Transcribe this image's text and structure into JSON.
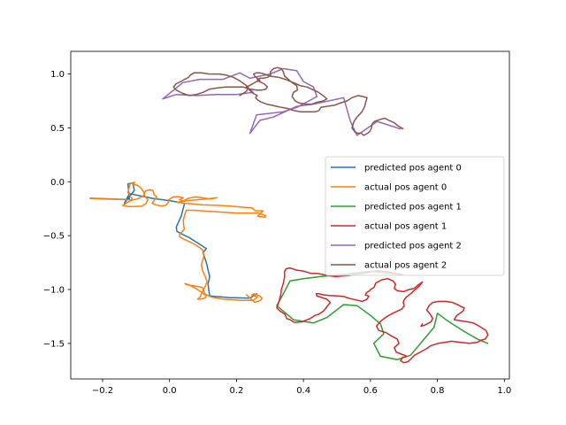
{
  "chart_data": {
    "type": "line",
    "title": "",
    "xlabel": "",
    "ylabel": "",
    "xlim": [
      -0.295,
      1.015
    ],
    "ylim": [
      -1.83,
      1.21
    ],
    "grid": false,
    "legend_position": "center right",
    "x_ticks": [
      -0.2,
      0.0,
      0.2,
      0.4,
      0.6,
      0.8,
      1.0
    ],
    "x_tick_labels": [
      "−0.2",
      "0.0",
      "0.2",
      "0.4",
      "0.6",
      "0.8",
      "1.0"
    ],
    "y_ticks": [
      1.0,
      0.5,
      0.0,
      -0.5,
      -1.0,
      -1.5
    ],
    "y_tick_labels": [
      "1.0",
      "0.5",
      "0.0",
      "−0.5",
      "−1.0",
      "−1.5"
    ],
    "series": [
      {
        "name": "predicted pos agent 0",
        "color": "#1f77b4",
        "x": [
          -0.237,
          -0.12,
          -0.124,
          -0.11,
          -0.105,
          -0.135,
          -0.12,
          -0.05,
          0.0,
          0.045,
          0.035,
          0.02,
          0.022,
          0.04,
          0.06,
          0.09,
          0.11,
          0.1,
          0.11,
          0.12,
          0.115,
          0.12,
          0.18,
          0.24,
          0.26
        ],
        "y": [
          -0.153,
          -0.165,
          -0.02,
          -0.01,
          -0.08,
          -0.2,
          -0.11,
          -0.155,
          -0.175,
          -0.2,
          -0.32,
          -0.42,
          -0.46,
          -0.49,
          -0.52,
          -0.58,
          -0.62,
          -0.66,
          -0.75,
          -0.88,
          -0.95,
          -1.06,
          -1.075,
          -1.08,
          -1.04
        ]
      },
      {
        "name": "actual pos agent 0",
        "color": "#ff7f0e",
        "x": [
          -0.237,
          -0.2,
          -0.16,
          -0.12,
          -0.11,
          -0.124,
          -0.118,
          -0.11,
          -0.104,
          -0.108,
          -0.098,
          -0.088,
          -0.082,
          -0.078,
          -0.075,
          -0.083,
          -0.096,
          -0.112,
          -0.125,
          -0.13,
          -0.14,
          -0.122,
          -0.1,
          -0.082,
          -0.07,
          -0.065,
          -0.071,
          -0.076,
          -0.072,
          -0.06,
          -0.05,
          -0.046,
          -0.038,
          -0.045,
          -0.052,
          -0.04,
          -0.025,
          -0.012,
          -0.005,
          -0.002,
          0.012,
          0.032,
          0.041,
          0.03,
          0.04,
          0.055,
          0.077,
          0.1,
          0.124,
          0.142,
          0.11,
          0.052,
          0.022,
          0.05,
          0.1,
          0.15,
          0.18,
          0.215,
          0.246,
          0.257,
          0.28,
          0.263,
          0.285,
          0.287,
          0.265,
          0.2,
          0.142,
          0.098,
          0.07,
          0.05,
          0.045,
          0.041,
          0.042,
          0.044,
          0.036,
          0.032,
          0.03,
          0.03,
          0.041,
          0.062,
          0.08,
          0.098,
          0.103,
          0.099,
          0.095,
          0.098,
          0.107,
          0.112,
          0.105,
          0.097,
          0.091,
          0.086,
          0.084,
          0.092,
          0.1,
          0.107,
          0.109,
          0.097,
          0.084,
          0.057,
          0.046,
          0.051,
          0.071,
          0.098,
          0.105,
          0.124,
          0.16,
          0.19,
          0.215,
          0.25,
          0.263,
          0.245,
          0.252,
          0.27,
          0.276,
          0.272,
          0.255,
          0.23
        ],
        "y": [
          -0.153,
          -0.16,
          -0.163,
          -0.168,
          -0.165,
          -0.1,
          -0.02,
          -0.01,
          -0.005,
          -0.028,
          -0.03,
          -0.05,
          -0.07,
          -0.09,
          -0.12,
          -0.14,
          -0.16,
          -0.17,
          -0.19,
          -0.2,
          -0.22,
          -0.23,
          -0.23,
          -0.225,
          -0.2,
          -0.165,
          -0.145,
          -0.12,
          -0.085,
          -0.075,
          -0.08,
          -0.12,
          -0.14,
          -0.17,
          -0.2,
          -0.215,
          -0.225,
          -0.22,
          -0.2,
          -0.165,
          -0.14,
          -0.14,
          -0.15,
          -0.165,
          -0.18,
          -0.155,
          -0.14,
          -0.15,
          -0.16,
          -0.148,
          -0.16,
          -0.175,
          -0.19,
          -0.2,
          -0.215,
          -0.22,
          -0.225,
          -0.235,
          -0.243,
          -0.27,
          -0.27,
          -0.32,
          -0.33,
          -0.315,
          -0.29,
          -0.29,
          -0.28,
          -0.27,
          -0.265,
          -0.265,
          -0.31,
          -0.36,
          -0.4,
          -0.44,
          -0.47,
          -0.48,
          -0.495,
          -0.51,
          -0.53,
          -0.56,
          -0.59,
          -0.63,
          -0.68,
          -0.73,
          -0.77,
          -0.82,
          -0.88,
          -0.93,
          -0.98,
          -1.03,
          -1.07,
          -1.085,
          -1.09,
          -1.09,
          -1.085,
          -1.075,
          -1.055,
          -1.03,
          -1.0,
          -0.955,
          -0.945,
          -0.955,
          -0.965,
          -0.98,
          -1.04,
          -1.07,
          -1.09,
          -1.095,
          -1.1,
          -1.1,
          -1.07,
          -1.05,
          -1.04,
          -1.06,
          -1.08,
          -1.1,
          -1.12,
          -1.05
        ],
        "style": "solid"
      },
      {
        "name": "predicted pos agent 1",
        "color": "#2ca02c",
        "x": [
          0.69,
          0.6,
          0.52,
          0.45,
          0.4,
          0.36,
          0.34,
          0.32,
          0.37,
          0.43,
          0.47,
          0.52,
          0.56,
          0.6,
          0.63,
          0.64,
          0.61,
          0.63,
          0.68,
          0.72,
          0.76,
          0.79,
          0.8,
          0.83,
          0.88,
          0.92,
          0.95
        ],
        "y": [
          -0.86,
          -0.83,
          -0.86,
          -0.88,
          -0.9,
          -0.92,
          -1.04,
          -1.15,
          -1.28,
          -1.31,
          -1.26,
          -1.14,
          -1.15,
          -1.24,
          -1.32,
          -1.41,
          -1.5,
          -1.62,
          -1.65,
          -1.61,
          -1.46,
          -1.35,
          -1.22,
          -1.29,
          -1.39,
          -1.46,
          -1.5
        ]
      },
      {
        "name": "actual pos agent 1",
        "color": "#d62728",
        "x": [
          0.695,
          0.68,
          0.66,
          0.64,
          0.62,
          0.6,
          0.58,
          0.555,
          0.535,
          0.515,
          0.495,
          0.475,
          0.456,
          0.44,
          0.422,
          0.401,
          0.38,
          0.368,
          0.358,
          0.347,
          0.343,
          0.344,
          0.34,
          0.334,
          0.332,
          0.327,
          0.32,
          0.33,
          0.345,
          0.35,
          0.36,
          0.37,
          0.374,
          0.395,
          0.42,
          0.434,
          0.445,
          0.46,
          0.47,
          0.48,
          0.47,
          0.46,
          0.45,
          0.44,
          0.438,
          0.446,
          0.462,
          0.478,
          0.503,
          0.52,
          0.54,
          0.562,
          0.575,
          0.59,
          0.595,
          0.585,
          0.588,
          0.598,
          0.6,
          0.611,
          0.616,
          0.634,
          0.652,
          0.667,
          0.675,
          0.671,
          0.68,
          0.698,
          0.715,
          0.73,
          0.742,
          0.755,
          0.745,
          0.73,
          0.72,
          0.707,
          0.7,
          0.698,
          0.701,
          0.694,
          0.681,
          0.667,
          0.655,
          0.645,
          0.632,
          0.618,
          0.625,
          0.647,
          0.662,
          0.68,
          0.685,
          0.671,
          0.677,
          0.692,
          0.702,
          0.708,
          0.696,
          0.69,
          0.7,
          0.712,
          0.722,
          0.732,
          0.749,
          0.767,
          0.781,
          0.802,
          0.823,
          0.842,
          0.869,
          0.895,
          0.919,
          0.931,
          0.943,
          0.951,
          0.945,
          0.925,
          0.907,
          0.89,
          0.869,
          0.85,
          0.858,
          0.877,
          0.88,
          0.872,
          0.866,
          0.86,
          0.845,
          0.825,
          0.804,
          0.786,
          0.775,
          0.768,
          0.779,
          0.786,
          0.781,
          0.763,
          0.751,
          0.755
        ],
        "y": [
          -0.86,
          -0.855,
          -0.84,
          -0.83,
          -0.825,
          -0.835,
          -0.85,
          -0.86,
          -0.87,
          -0.875,
          -0.88,
          -0.87,
          -0.86,
          -0.85,
          -0.85,
          -0.83,
          -0.82,
          -0.808,
          -0.8,
          -0.81,
          -0.84,
          -0.88,
          -0.94,
          -1.0,
          -1.05,
          -1.11,
          -1.17,
          -1.2,
          -1.23,
          -1.27,
          -1.28,
          -1.3,
          -1.305,
          -1.3,
          -1.27,
          -1.24,
          -1.23,
          -1.2,
          -1.16,
          -1.12,
          -1.09,
          -1.08,
          -1.07,
          -1.06,
          -1.04,
          -1.04,
          -1.05,
          -1.055,
          -1.06,
          -1.065,
          -1.085,
          -1.1,
          -1.11,
          -1.09,
          -1.06,
          -1.05,
          -1.03,
          -1.01,
          -1.0,
          -0.98,
          -0.94,
          -0.91,
          -0.9,
          -0.92,
          -0.95,
          -0.99,
          -1.01,
          -1.02,
          -1.0,
          -0.99,
          -0.96,
          -0.93,
          -0.97,
          -1.01,
          -1.04,
          -1.07,
          -1.1,
          -1.12,
          -1.15,
          -1.18,
          -1.2,
          -1.22,
          -1.24,
          -1.26,
          -1.29,
          -1.34,
          -1.38,
          -1.4,
          -1.43,
          -1.46,
          -1.5,
          -1.54,
          -1.58,
          -1.6,
          -1.61,
          -1.62,
          -1.63,
          -1.66,
          -1.68,
          -1.67,
          -1.64,
          -1.61,
          -1.58,
          -1.55,
          -1.52,
          -1.5,
          -1.49,
          -1.48,
          -1.49,
          -1.5,
          -1.49,
          -1.47,
          -1.46,
          -1.42,
          -1.38,
          -1.34,
          -1.31,
          -1.3,
          -1.29,
          -1.28,
          -1.24,
          -1.2,
          -1.17,
          -1.16,
          -1.15,
          -1.14,
          -1.12,
          -1.11,
          -1.11,
          -1.12,
          -1.15,
          -1.19,
          -1.23,
          -1.27,
          -1.3,
          -1.33,
          -1.34,
          -1.32
        ]
      },
      {
        "name": "predicted pos agent 2",
        "color": "#9467bd",
        "x": [
          0.69,
          0.62,
          0.56,
          0.54,
          0.52,
          0.43,
          0.38,
          0.31,
          0.27,
          0.24,
          0.26,
          0.34,
          0.38,
          0.44,
          0.43,
          0.4,
          0.38,
          0.34,
          0.3,
          0.24,
          0.21,
          0.16,
          0.09,
          0.04,
          -0.02,
          0.02,
          0.08,
          0.14,
          0.2,
          0.25,
          0.23
        ],
        "y": [
          0.49,
          0.56,
          0.43,
          0.56,
          0.78,
          0.72,
          0.7,
          0.6,
          0.57,
          0.45,
          0.62,
          0.65,
          0.69,
          0.79,
          0.88,
          0.93,
          1.03,
          1.05,
          1.0,
          0.96,
          1.01,
          0.95,
          0.95,
          0.92,
          0.77,
          0.81,
          0.8,
          0.81,
          0.81,
          0.83,
          0.88
        ]
      },
      {
        "name": "actual pos agent 2",
        "color": "#8c564b",
        "x": [
          0.697,
          0.682,
          0.67,
          0.655,
          0.643,
          0.631,
          0.612,
          0.606,
          0.603,
          0.599,
          0.592,
          0.58,
          0.573,
          0.563,
          0.554,
          0.545,
          0.551,
          0.56,
          0.575,
          0.583,
          0.587,
          0.59,
          0.578,
          0.563,
          0.545,
          0.53,
          0.51,
          0.492,
          0.47,
          0.452,
          0.446,
          0.436,
          0.424,
          0.406,
          0.392,
          0.372,
          0.352,
          0.335,
          0.32,
          0.306,
          0.29,
          0.273,
          0.263,
          0.257,
          0.262,
          0.25,
          0.239,
          0.23,
          0.243,
          0.26,
          0.27,
          0.262,
          0.255,
          0.251,
          0.259,
          0.27,
          0.283,
          0.3,
          0.325,
          0.346,
          0.37,
          0.392,
          0.41,
          0.424,
          0.445,
          0.458,
          0.47,
          0.459,
          0.443,
          0.425,
          0.407,
          0.388,
          0.375,
          0.366,
          0.37,
          0.382,
          0.38,
          0.366,
          0.355,
          0.344,
          0.34,
          0.334,
          0.322,
          0.311,
          0.301,
          0.302,
          0.294,
          0.28,
          0.27,
          0.262,
          0.268,
          0.282,
          0.292,
          0.288,
          0.275,
          0.259,
          0.24,
          0.219,
          0.192,
          0.169,
          0.142,
          0.12,
          0.1,
          0.08,
          0.059,
          0.04,
          0.02,
          0.012,
          0.02,
          0.034,
          0.045,
          0.052,
          0.057,
          0.062,
          0.073,
          0.095,
          0.12,
          0.149,
          0.169,
          0.19,
          0.208,
          0.222,
          0.235,
          0.23,
          0.21
        ],
        "y": [
          0.493,
          0.52,
          0.55,
          0.57,
          0.59,
          0.58,
          0.56,
          0.54,
          0.5,
          0.47,
          0.45,
          0.43,
          0.45,
          0.45,
          0.46,
          0.5,
          0.56,
          0.6,
          0.65,
          0.7,
          0.75,
          0.78,
          0.79,
          0.8,
          0.78,
          0.75,
          0.73,
          0.71,
          0.7,
          0.69,
          0.66,
          0.65,
          0.65,
          0.65,
          0.65,
          0.66,
          0.68,
          0.69,
          0.7,
          0.71,
          0.72,
          0.74,
          0.76,
          0.78,
          0.8,
          0.82,
          0.85,
          0.88,
          0.9,
          0.93,
          0.94,
          0.96,
          0.98,
          1.0,
          1.01,
          1.01,
          1.0,
          0.98,
          0.97,
          0.95,
          0.92,
          0.89,
          0.88,
          0.86,
          0.83,
          0.8,
          0.77,
          0.75,
          0.74,
          0.72,
          0.72,
          0.73,
          0.75,
          0.79,
          0.83,
          0.85,
          0.89,
          0.92,
          0.95,
          0.98,
          1.02,
          1.05,
          1.06,
          1.05,
          1.02,
          0.99,
          0.97,
          0.96,
          0.96,
          0.95,
          0.93,
          0.91,
          0.88,
          0.86,
          0.85,
          0.85,
          0.86,
          0.88,
          0.88,
          0.88,
          0.87,
          0.86,
          0.83,
          0.81,
          0.8,
          0.82,
          0.85,
          0.88,
          0.91,
          0.93,
          0.95,
          0.96,
          0.97,
          0.99,
          1.01,
          1.01,
          1.0,
          1.0,
          0.99,
          0.97,
          0.94,
          0.91,
          0.88,
          0.84,
          0.8
        ]
      }
    ]
  }
}
